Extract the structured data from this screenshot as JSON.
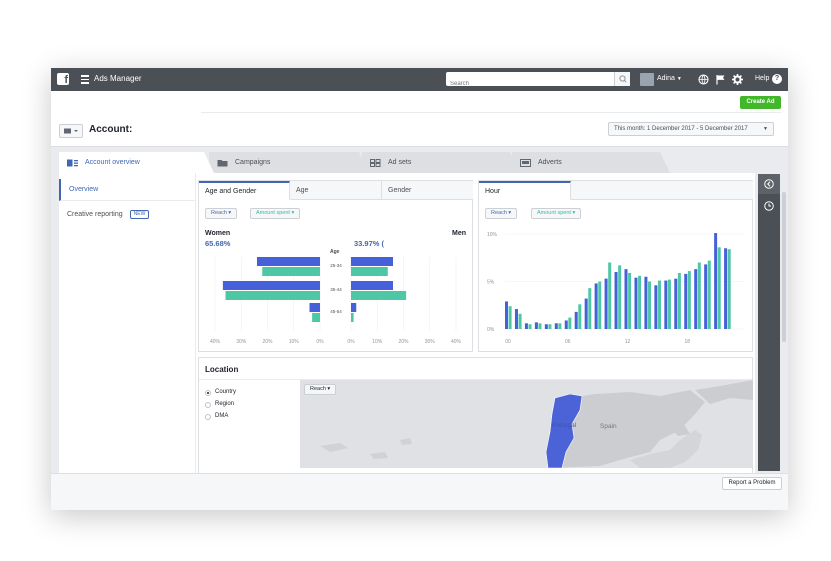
{
  "topbar": {
    "app_name": "Ads Manager",
    "search_placeholder": "Search",
    "user_name": "Adina",
    "help_label": "Help"
  },
  "header": {
    "create_ad_label": "Create Ad",
    "account_label": "Account:",
    "date_range": "This month: 1 December 2017 - 5 December 2017"
  },
  "tabs": [
    {
      "label": "Account overview"
    },
    {
      "label": "Campaigns"
    },
    {
      "label": "Ad sets"
    },
    {
      "label": "Adverts"
    }
  ],
  "sidebar": {
    "items": [
      {
        "label": "Overview"
      },
      {
        "label": "Creative reporting",
        "badge": "NEW"
      }
    ]
  },
  "demographics": {
    "tabs": [
      "Age and Gender",
      "Age",
      "Gender"
    ],
    "metric_primary": "Reach",
    "metric_secondary": "Amount spent",
    "women_label": "Women",
    "men_label": "Men",
    "women_pct": "65.68%",
    "men_pct": "33.97% (",
    "age_header": "Age",
    "x_ticks_left": [
      "40%",
      "30%",
      "20%",
      "10%",
      "0%"
    ],
    "x_ticks_right": [
      "0%",
      "10%",
      "20%",
      "30%",
      "40%"
    ]
  },
  "hour": {
    "tab_label": "Hour",
    "metric_primary": "Reach",
    "metric_secondary": "Amount spent",
    "y_ticks": [
      "10%",
      "5%",
      "0%"
    ],
    "x_ticks": [
      "00",
      "06",
      "12",
      "18"
    ]
  },
  "location": {
    "title": "Location",
    "options": [
      "Country",
      "Region",
      "DMA"
    ],
    "selected": "Country",
    "metric": "Reach",
    "map_labels": [
      "Portugal",
      "Spain"
    ]
  },
  "footer": {
    "report_label": "Report a Problem"
  },
  "colors": {
    "reach": "#4560d8",
    "amount_spent": "#4ec7a5",
    "accent": "#4267b2",
    "create_button": "#42b72a",
    "topbar": "#4b4f56"
  },
  "icons": [
    "facebook-icon",
    "hamburger-icon",
    "search-icon",
    "globe-icon",
    "flag-icon",
    "gear-icon",
    "help-icon",
    "chevron-left-icon",
    "clock-icon"
  ],
  "chart_data": [
    {
      "type": "bar",
      "orientation": "horizontal",
      "categories": [
        "25-34",
        "35-44",
        "45-54"
      ],
      "series": [
        {
          "name": "Reach",
          "group": "Women",
          "values": [
            24,
            37,
            4
          ]
        },
        {
          "name": "Amount spent",
          "group": "Women",
          "values": [
            22,
            36,
            3
          ]
        },
        {
          "name": "Reach",
          "group": "Men",
          "values": [
            16,
            16,
            2
          ]
        },
        {
          "name": "Amount spent",
          "group": "Men",
          "values": [
            14,
            21,
            1
          ]
        }
      ],
      "xlim": [
        0,
        40
      ]
    },
    {
      "type": "bar",
      "categories": [
        "00",
        "01",
        "02",
        "03",
        "04",
        "05",
        "06",
        "07",
        "08",
        "09",
        "10",
        "11",
        "12",
        "13",
        "14",
        "15",
        "16",
        "17",
        "18",
        "19",
        "20",
        "21",
        "22",
        "23"
      ],
      "series": [
        {
          "name": "Reach",
          "values": [
            2.9,
            2.1,
            0.6,
            0.7,
            0.5,
            0.6,
            0.9,
            1.8,
            3.2,
            4.8,
            5.3,
            6.0,
            6.3,
            5.4,
            5.5,
            4.6,
            5.1,
            5.3,
            5.8,
            6.3,
            6.8,
            10.1,
            8.5,
            0
          ]
        },
        {
          "name": "Amount spent",
          "values": [
            2.4,
            1.6,
            0.5,
            0.6,
            0.5,
            0.6,
            1.2,
            2.6,
            4.3,
            5.0,
            7.0,
            6.7,
            5.9,
            5.6,
            5.0,
            5.1,
            5.2,
            5.9,
            6.1,
            7.0,
            7.2,
            8.6,
            8.4,
            0
          ]
        }
      ],
      "ylim": [
        0,
        10
      ]
    }
  ]
}
